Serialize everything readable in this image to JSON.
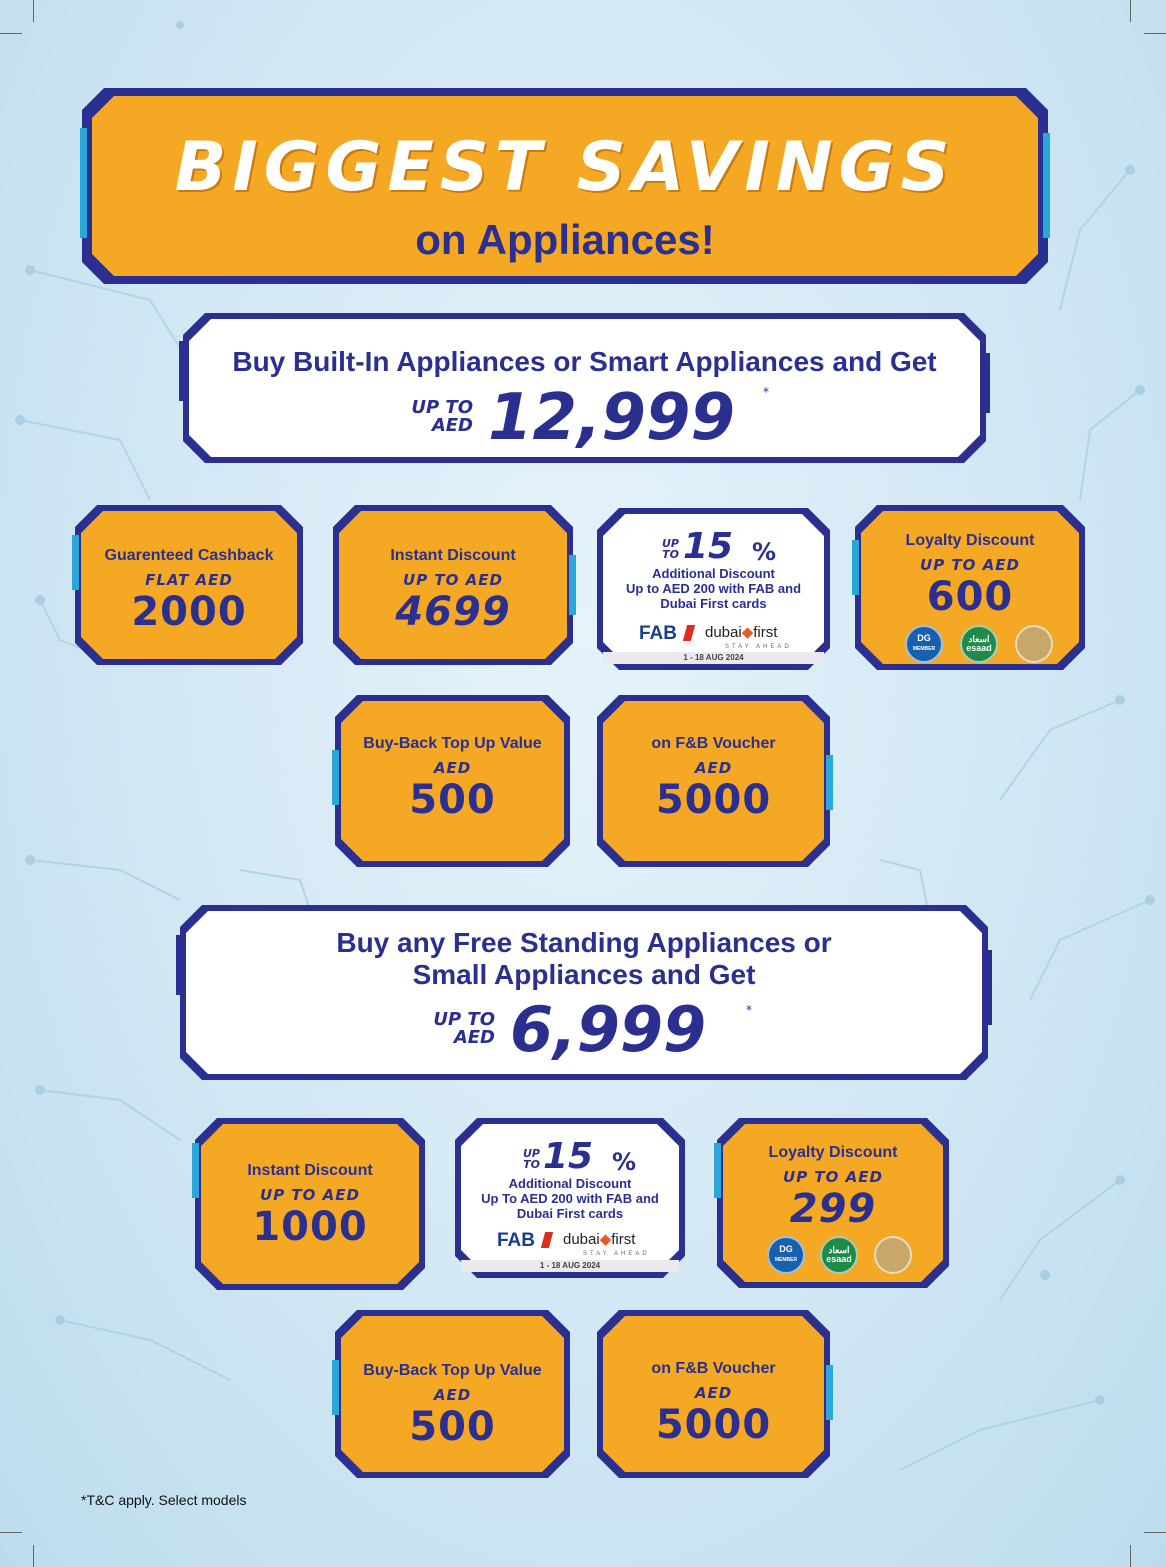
{
  "banner": {
    "title": "BIGGEST SAVINGS",
    "subtitle": "on Appliances!"
  },
  "offer1": {
    "headline": "Buy Built-In Appliances or Smart Appliances and Get",
    "upto_line1": "UP TO",
    "upto_line2": "AED",
    "amount": "12,999",
    "asterisk": "*",
    "tiles": {
      "cashback": {
        "label": "Guarenteed Cashback",
        "sub": "FLAT AED",
        "value": "2000"
      },
      "instant": {
        "label": "Instant Discount",
        "sub": "UP TO AED",
        "value": "4699"
      },
      "bank": {
        "upto_line1": "UP",
        "upto_line2": "TO",
        "percent": "15",
        "percent_sign": "%",
        "line1": "Additional Discount",
        "line2": "Up to AED 200 with FAB and",
        "line3": "Dubai First cards",
        "fab": "FAB",
        "dubai": "dubai",
        "first": "first",
        "stay": "STAY AHEAD",
        "date": "1 - 18 AUG 2024"
      },
      "loyalty": {
        "label": "Loyalty Discount",
        "sub": "UP TO AED",
        "value": "600"
      },
      "buyback": {
        "label": "Buy-Back Top Up Value",
        "sub": "AED",
        "value": "500"
      },
      "fnb": {
        "label": "on F&B Voucher",
        "sub": "AED",
        "value": "5000"
      }
    }
  },
  "offer2": {
    "headline_line1": "Buy any Free Standing Appliances or",
    "headline_line2": "Small Appliances and Get",
    "upto_line1": "UP TO",
    "upto_line2": "AED",
    "amount": "6,999",
    "asterisk": "*",
    "tiles": {
      "instant": {
        "label": "Instant Discount",
        "sub": "UP TO AED",
        "value": "1000"
      },
      "bank": {
        "upto_line1": "UP",
        "upto_line2": "TO",
        "percent": "15",
        "percent_sign": "%",
        "line1": "Additional Discount",
        "line2": "Up To AED 200 with FAB and",
        "line3": "Dubai First cards",
        "fab": "FAB",
        "dubai": "dubai",
        "first": "first",
        "stay": "STAY AHEAD",
        "date": "1 - 18 AUG 2024"
      },
      "loyalty": {
        "label": "Loyalty Discount",
        "sub": "UP TO AED",
        "value": "299"
      },
      "buyback": {
        "label": "Buy-Back Top Up Value",
        "sub": "AED",
        "value": "500"
      },
      "fnb": {
        "label": "on F&B Voucher",
        "sub": "AED",
        "value": "5000"
      }
    }
  },
  "badges": {
    "dg_line1": "DG",
    "dg_line2": "MEMBER",
    "esaad_line1": "اسعاد",
    "esaad_line2": "esaad"
  },
  "footnote": "*T&C apply. Select models",
  "colors": {
    "navy": "#2b2f8f",
    "orange": "#f4a824",
    "accent_blue": "#2aa6d8",
    "background": "#cfe6f3"
  }
}
